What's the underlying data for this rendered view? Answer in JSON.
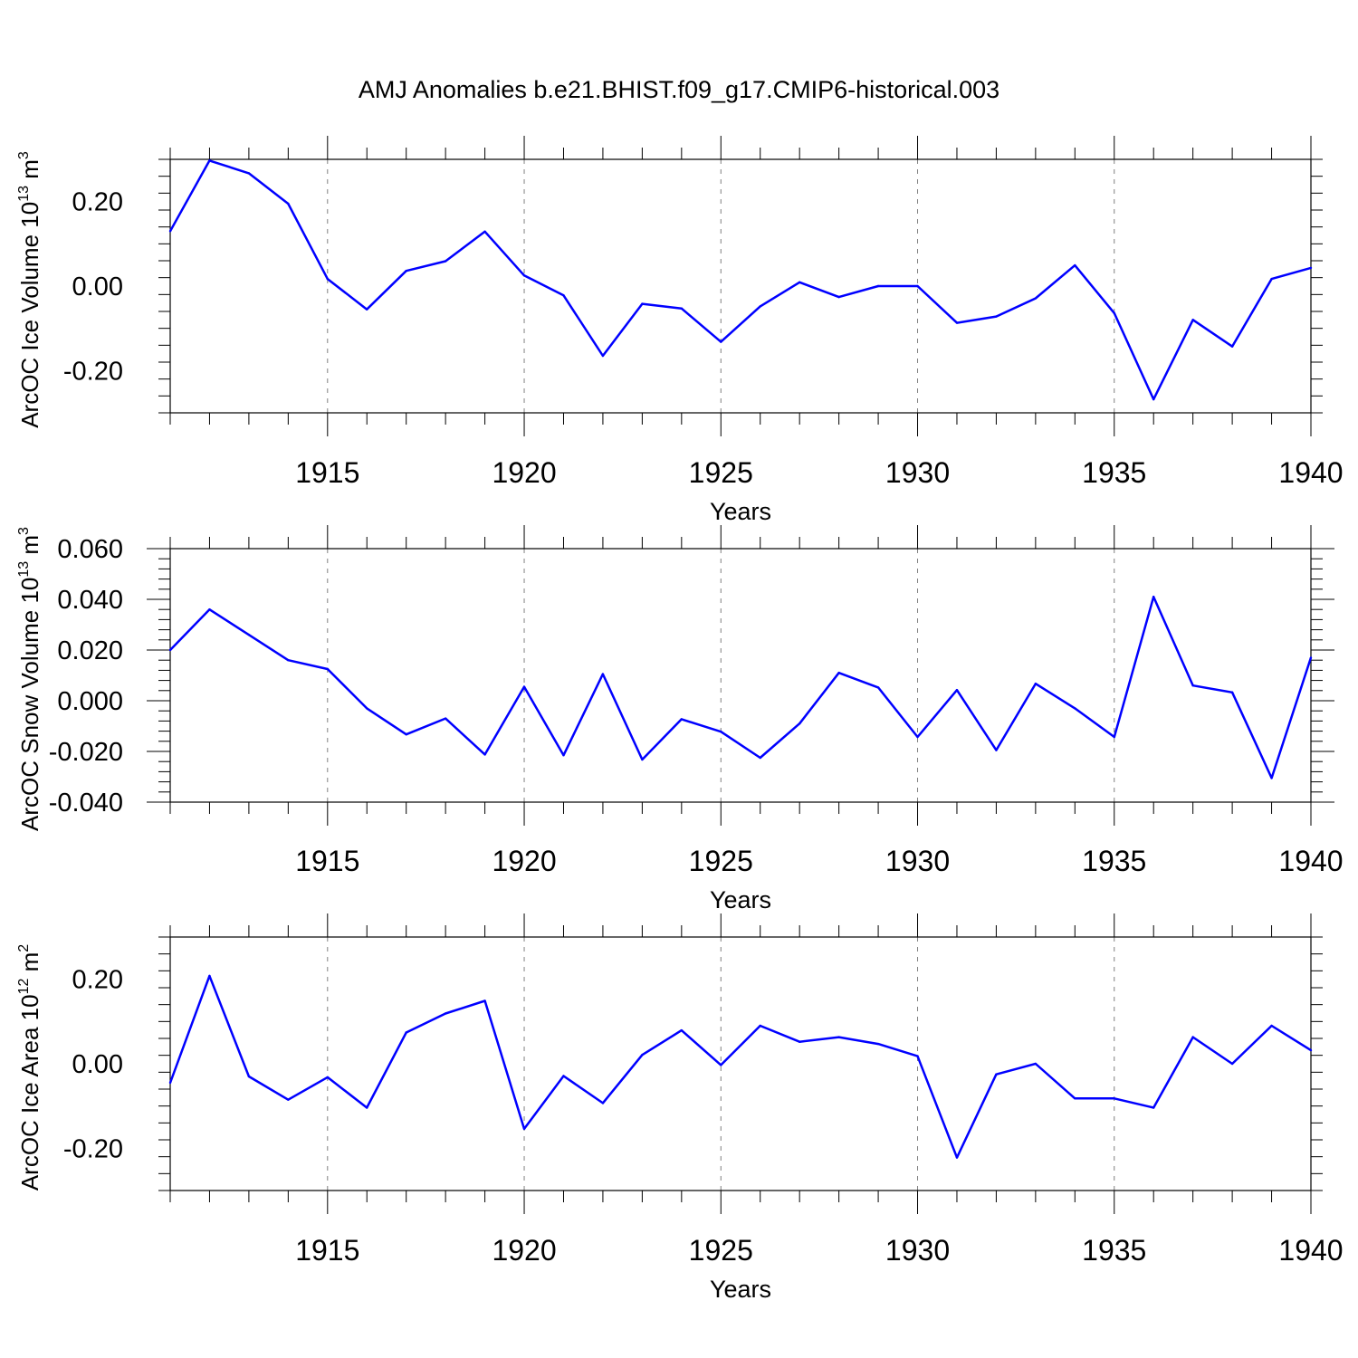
{
  "title": "AMJ Anomalies b.e21.BHIST.f09_g17.CMIP6-historical.003",
  "colors": {
    "series": "#0000ff",
    "axis": "#000000",
    "grid": "#808080"
  },
  "chart_data": [
    {
      "type": "line",
      "ylabel_main": "ArcOC Ice Volume 10",
      "ylabel_sup": "13",
      "ylabel_unit": " m",
      "ylabel_unit_sup": "3",
      "xlabel": "Years",
      "xlim": [
        1911,
        1940
      ],
      "ylim": [
        -0.3,
        0.3
      ],
      "yticks": [
        -0.2,
        0.0,
        0.2
      ],
      "ytick_labels": [
        "-0.20",
        "0.00",
        "0.20"
      ],
      "xticks": [
        1915,
        1920,
        1925,
        1930,
        1935,
        1940
      ],
      "xtick_labels": [
        "1915",
        "1920",
        "1925",
        "1930",
        "1935",
        "1940"
      ],
      "x": [
        1911,
        1912,
        1913,
        1914,
        1915,
        1916,
        1917,
        1918,
        1919,
        1920,
        1921,
        1922,
        1923,
        1924,
        1925,
        1926,
        1927,
        1928,
        1929,
        1930,
        1931,
        1932,
        1933,
        1934,
        1935,
        1936,
        1937,
        1938,
        1939,
        1940
      ],
      "values": [
        0.13,
        0.297,
        0.267,
        0.195,
        0.017,
        -0.055,
        0.036,
        0.059,
        0.129,
        0.025,
        -0.022,
        -0.165,
        -0.042,
        -0.053,
        -0.132,
        -0.048,
        0.009,
        -0.026,
        0.0,
        0.0,
        -0.087,
        -0.072,
        -0.029,
        0.049,
        -0.064,
        -0.268,
        -0.08,
        -0.143,
        0.017,
        0.043
      ]
    },
    {
      "type": "line",
      "ylabel_main": "ArcOC Snow Volume 10",
      "ylabel_sup": "13",
      "ylabel_unit": " m",
      "ylabel_unit_sup": "3",
      "xlabel": "Years",
      "xlim": [
        1911,
        1940
      ],
      "ylim": [
        -0.04,
        0.06
      ],
      "yticks": [
        -0.04,
        -0.02,
        0.0,
        0.02,
        0.04,
        0.06
      ],
      "ytick_labels": [
        "-0.040",
        "-0.020",
        "0.000",
        "0.020",
        "0.040",
        "0.060"
      ],
      "xticks": [
        1915,
        1920,
        1925,
        1930,
        1935,
        1940
      ],
      "xtick_labels": [
        "1915",
        "1920",
        "1925",
        "1930",
        "1935",
        "1940"
      ],
      "x": [
        1911,
        1912,
        1913,
        1914,
        1915,
        1916,
        1917,
        1918,
        1919,
        1920,
        1921,
        1922,
        1923,
        1924,
        1925,
        1926,
        1927,
        1928,
        1929,
        1930,
        1931,
        1932,
        1933,
        1934,
        1935,
        1936,
        1937,
        1938,
        1939,
        1940
      ],
      "values": [
        0.02,
        0.036,
        0.026,
        0.016,
        0.0125,
        -0.003,
        -0.0133,
        -0.007,
        -0.0212,
        0.0055,
        -0.0215,
        0.0105,
        -0.0232,
        -0.0073,
        -0.0122,
        -0.0225,
        -0.009,
        0.011,
        0.0052,
        -0.0143,
        0.0042,
        -0.0195,
        0.0067,
        -0.003,
        -0.0143,
        0.041,
        0.006,
        0.0033,
        -0.0305,
        0.017
      ]
    },
    {
      "type": "line",
      "ylabel_main": "ArcOC Ice Area 10",
      "ylabel_sup": "12",
      "ylabel_unit": " m",
      "ylabel_unit_sup": "2",
      "xlabel": "Years",
      "xlim": [
        1911,
        1940
      ],
      "ylim": [
        -0.3,
        0.3
      ],
      "yticks": [
        -0.2,
        0.0,
        0.2
      ],
      "ytick_labels": [
        "-0.20",
        "0.00",
        "0.20"
      ],
      "xticks": [
        1915,
        1920,
        1925,
        1930,
        1935,
        1940
      ],
      "xtick_labels": [
        "1915",
        "1920",
        "1925",
        "1930",
        "1935",
        "1940"
      ],
      "x": [
        1911,
        1912,
        1913,
        1914,
        1915,
        1916,
        1917,
        1918,
        1919,
        1920,
        1921,
        1922,
        1923,
        1924,
        1925,
        1926,
        1927,
        1928,
        1929,
        1930,
        1931,
        1932,
        1933,
        1934,
        1935,
        1936,
        1937,
        1938,
        1939,
        1940
      ],
      "values": [
        -0.045,
        0.208,
        -0.03,
        -0.085,
        -0.032,
        -0.104,
        0.074,
        0.119,
        0.149,
        -0.154,
        -0.029,
        -0.093,
        0.021,
        0.079,
        -0.003,
        0.09,
        0.052,
        0.063,
        0.047,
        0.018,
        -0.222,
        -0.025,
        0.0,
        -0.082,
        -0.082,
        -0.104,
        0.063,
        0.0,
        0.09,
        0.032
      ]
    }
  ]
}
